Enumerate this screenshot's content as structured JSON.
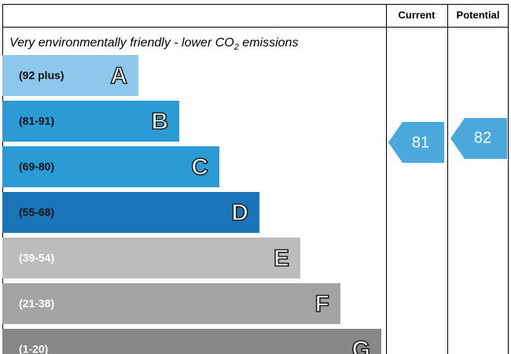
{
  "header": {
    "current": "Current",
    "potential": "Potential"
  },
  "caption": {
    "before": "Very environmentally friendly - lower CO",
    "subscript": "2",
    "after": " emissions"
  },
  "bands": [
    {
      "range": "(92 plus)",
      "letter": "A"
    },
    {
      "range": "(81-91)",
      "letter": "B"
    },
    {
      "range": "(69-80)",
      "letter": "C"
    },
    {
      "range": "(55-68)",
      "letter": "D"
    },
    {
      "range": "(39-54)",
      "letter": "E"
    },
    {
      "range": "(21-38)",
      "letter": "F"
    },
    {
      "range": "(1-20)",
      "letter": "G"
    }
  ],
  "current": "81",
  "potential": "82"
}
